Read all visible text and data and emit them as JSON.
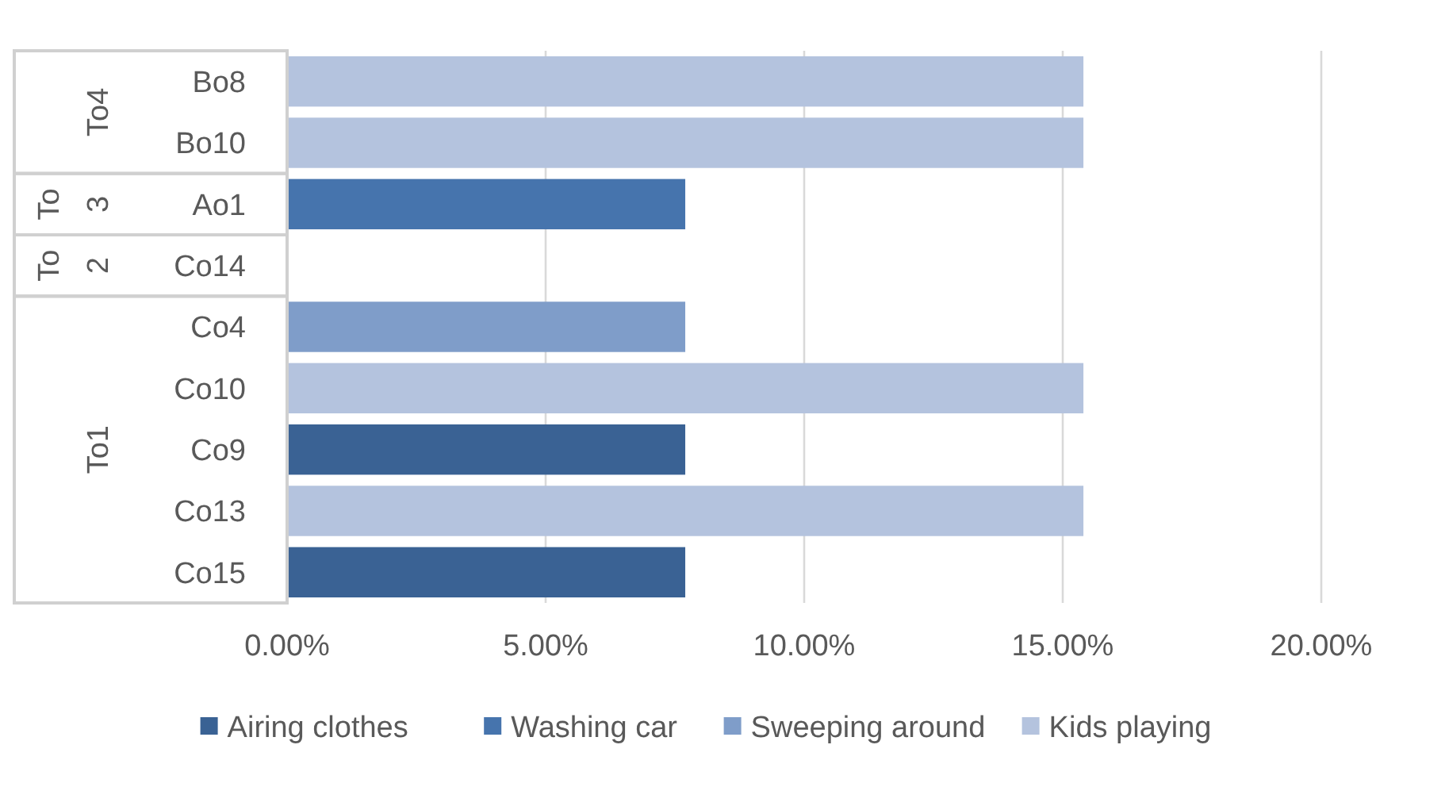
{
  "chart_data": {
    "type": "bar",
    "orientation": "horizontal",
    "categories": [
      "Bo8",
      "Bo10",
      "Ao1",
      "Co14",
      "Co4",
      "Co10",
      "Co9",
      "Co13",
      "Co15"
    ],
    "series": [
      {
        "name": "Airing clothes",
        "color": "#3a6294",
        "values": [
          null,
          null,
          null,
          null,
          null,
          null,
          7.7,
          null,
          7.7
        ]
      },
      {
        "name": "Washing car",
        "color": "#4674ad",
        "values": [
          null,
          null,
          7.7,
          null,
          null,
          null,
          null,
          null,
          null
        ]
      },
      {
        "name": "Sweeping around",
        "color": "#7f9dc9",
        "values": [
          null,
          null,
          null,
          null,
          7.7,
          null,
          null,
          null,
          null
        ]
      },
      {
        "name": "Kids playing",
        "color": "#b4c3de",
        "values": [
          15.4,
          15.4,
          null,
          null,
          null,
          15.4,
          null,
          15.4,
          null
        ]
      }
    ],
    "xlim": [
      0,
      20
    ],
    "xticks": [
      {
        "value": 0,
        "label": "0.00%"
      },
      {
        "value": 5,
        "label": "5.00%"
      },
      {
        "value": 10,
        "label": "10.00%"
      },
      {
        "value": 15,
        "label": "15.00%"
      },
      {
        "value": 20,
        "label": "20.00%"
      }
    ],
    "grid": "x",
    "legend": "bottom",
    "annotations": [
      "To4",
      "To 3",
      "To 2",
      "To1"
    ]
  }
}
